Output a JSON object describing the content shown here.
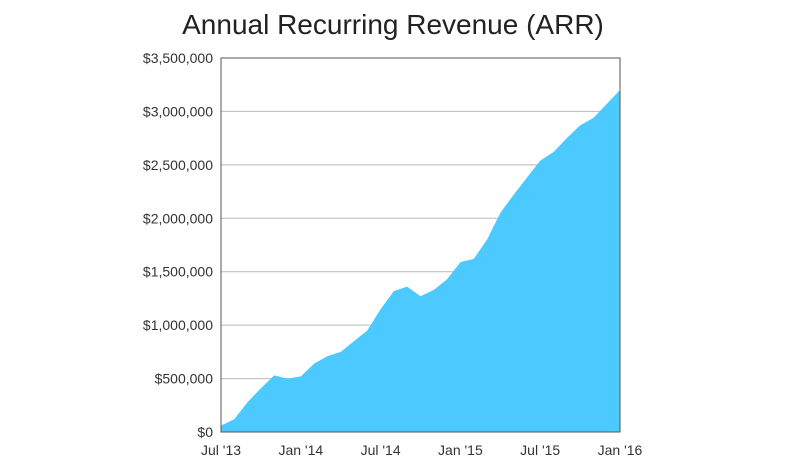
{
  "chart_data": {
    "type": "area",
    "title": "Annual Recurring Revenue (ARR)",
    "xlabel": "",
    "ylabel": "",
    "x_tick_labels": [
      "Jul '13",
      "Jan '14",
      "Jul '14",
      "Jan '15",
      "Jul '15",
      "Jan '16"
    ],
    "y_tick_labels": [
      "$0",
      "$500,000",
      "$1,000,000",
      "$1,500,000",
      "$2,000,000",
      "$2,500,000",
      "$3,000,000",
      "$3,500,000"
    ],
    "ylim": [
      0,
      3500000
    ],
    "grid": true,
    "legend": "none",
    "colors": {
      "area": "#4ccaff",
      "grid": "#b9b9b9",
      "frame": "#555555"
    },
    "series": [
      {
        "values": [
          60000,
          120000,
          280000,
          410000,
          530000,
          500000,
          520000,
          640000,
          710000,
          750000,
          850000,
          950000,
          1150000,
          1320000,
          1360000,
          1270000,
          1330000,
          1430000,
          1590000,
          1620000,
          1800000,
          2050000,
          2220000,
          2380000,
          2540000,
          2620000,
          2750000,
          2870000,
          2940000,
          3070000,
          3200000
        ]
      }
    ]
  }
}
